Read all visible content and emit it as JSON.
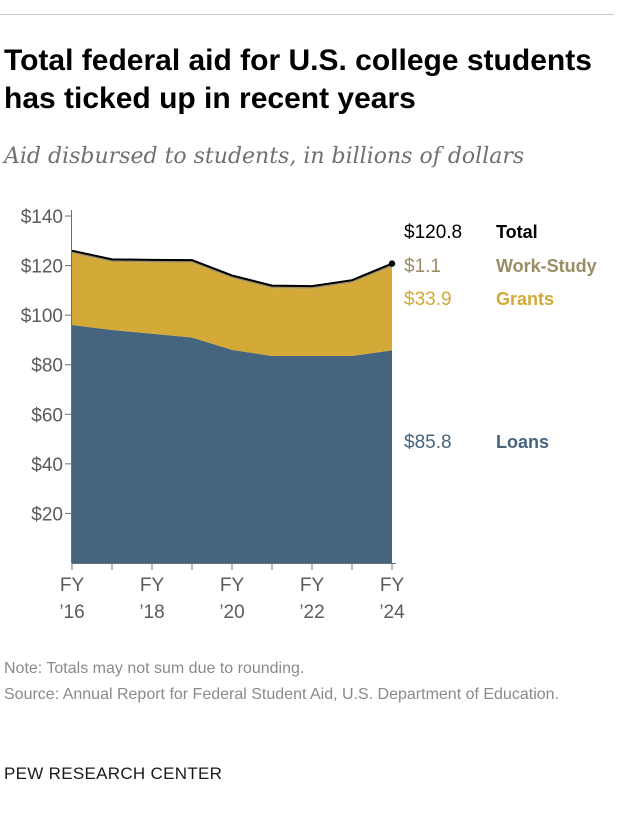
{
  "header": {
    "title": "Total federal aid for U.S. college students has ticked up in recent years",
    "subtitle": "Aid disbursed to students, in billions of dollars"
  },
  "footer": {
    "note": "Note: Totals may not sum due to rounding.",
    "source": "Source: Annual Report for Federal Student Aid, U.S. Department of Education.",
    "brand": "PEW RESEARCH CENTER"
  },
  "colors": {
    "loans": "#45657f",
    "grants": "#d3a937",
    "work_study": "#9a8d64",
    "total": "#000000",
    "axis_text": "#5b5b5b"
  },
  "chart_data": {
    "type": "area",
    "stacked": true,
    "x": [
      "FY 2016",
      "FY 2017",
      "FY 2018",
      "FY 2019",
      "FY 2020",
      "FY 2021",
      "FY 2022",
      "FY 2023",
      "FY 2024"
    ],
    "x_tick_labels": [
      {
        "index": 0,
        "line1": "FY",
        "line2": "’16"
      },
      {
        "index": 2,
        "line1": "FY",
        "line2": "’18"
      },
      {
        "index": 4,
        "line1": "FY",
        "line2": "’20"
      },
      {
        "index": 6,
        "line1": "FY",
        "line2": "’22"
      },
      {
        "index": 8,
        "line1": "FY",
        "line2": "’24"
      }
    ],
    "y_ticks": [
      {
        "value": 20,
        "label": "$20"
      },
      {
        "value": 40,
        "label": "$40"
      },
      {
        "value": 60,
        "label": "$60"
      },
      {
        "value": 80,
        "label": "$80"
      },
      {
        "value": 100,
        "label": "$100"
      },
      {
        "value": 120,
        "label": "$120"
      },
      {
        "value": 140,
        "label": "$140"
      }
    ],
    "ylim": [
      0,
      140
    ],
    "series": [
      {
        "name": "Loans",
        "key": "loans",
        "values": [
          96.0,
          94.0,
          92.5,
          91.0,
          86.0,
          83.5,
          83.5,
          83.5,
          85.8
        ],
        "end_label": "$85.8"
      },
      {
        "name": "Grants",
        "key": "grants",
        "values": [
          29.0,
          27.5,
          28.8,
          30.2,
          29.0,
          27.4,
          27.2,
          29.6,
          33.9
        ],
        "end_label": "$33.9"
      },
      {
        "name": "Work-Study",
        "key": "work_study",
        "values": [
          1.0,
          1.0,
          1.0,
          1.0,
          1.0,
          1.0,
          1.0,
          1.0,
          1.1
        ],
        "end_label": "$1.1"
      }
    ],
    "total": {
      "name": "Total",
      "values": [
        126.0,
        122.5,
        122.3,
        122.2,
        116.0,
        111.9,
        111.7,
        114.1,
        120.8
      ],
      "end_label": "$120.8"
    }
  }
}
